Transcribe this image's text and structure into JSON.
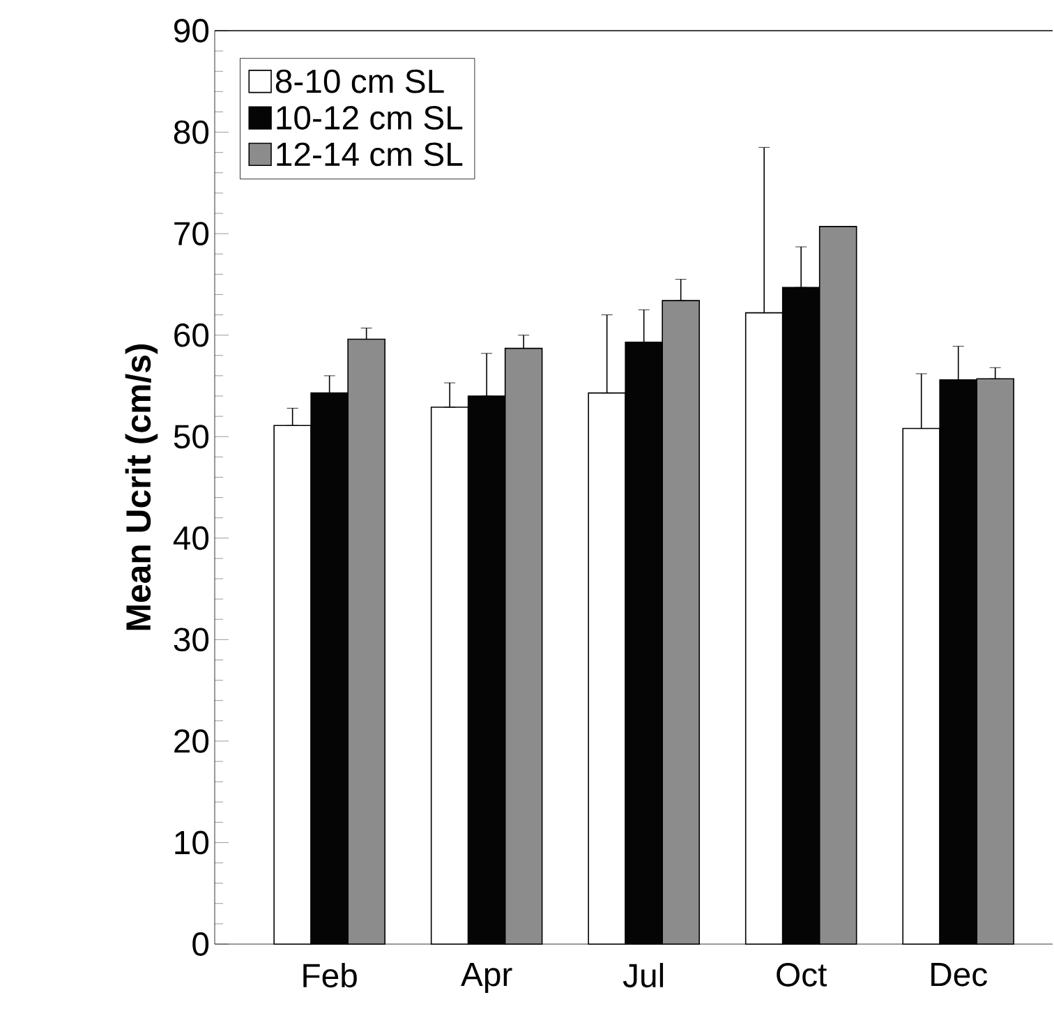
{
  "chart_data": {
    "type": "bar",
    "ylabel": "Mean Ucrit (cm/s)",
    "categories": [
      "Feb",
      "Apr",
      "Jul",
      "Oct",
      "Dec"
    ],
    "series": [
      {
        "name": "8-10 cm SL",
        "color": "#ffffff",
        "values": [
          51.1,
          52.9,
          54.3,
          62.2,
          50.8
        ],
        "errors": [
          [
            51.1,
            52.8
          ],
          [
            52.9,
            55.3
          ],
          [
            54.3,
            62.0
          ],
          [
            62.2,
            78.5
          ],
          [
            50.8,
            56.2
          ]
        ]
      },
      {
        "name": "10-12 cm SL",
        "color": "#050505",
        "values": [
          54.3,
          54.0,
          59.3,
          64.7,
          55.6
        ],
        "errors": [
          [
            54.3,
            56.0
          ],
          [
            54.0,
            58.2
          ],
          [
            59.3,
            62.5
          ],
          [
            64.7,
            68.7
          ],
          [
            55.6,
            58.9
          ]
        ]
      },
      {
        "name": "12-14 cm SL",
        "color": "#8c8c8c",
        "values": [
          59.6,
          58.7,
          63.4,
          70.7,
          55.7
        ],
        "errors": [
          [
            59.6,
            60.7
          ],
          [
            58.7,
            60.0
          ],
          [
            63.4,
            65.5
          ],
          null,
          [
            55.7,
            56.8
          ]
        ]
      }
    ],
    "ylim": [
      0,
      90
    ],
    "yticks": [
      0,
      10,
      20,
      30,
      40,
      50,
      60,
      70,
      80,
      90
    ],
    "grid": false,
    "legend": "top left"
  }
}
